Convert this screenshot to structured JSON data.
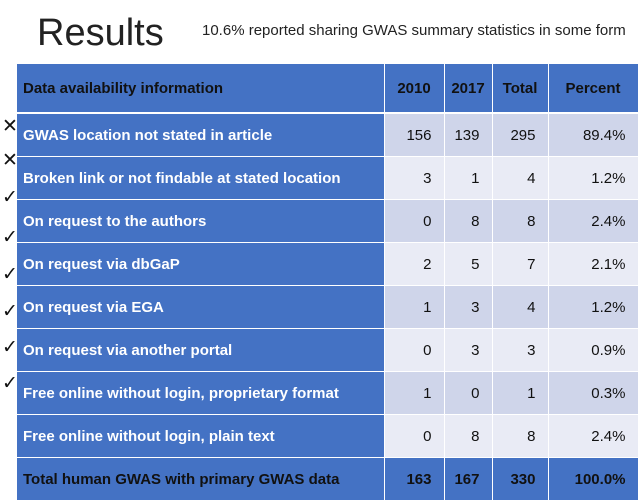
{
  "header": {
    "title": "Results",
    "subtitle": "10.6% reported sharing GWAS summary statistics in some form"
  },
  "table": {
    "columns": [
      "Data availability information",
      "2010",
      "2017",
      "Total",
      "Percent"
    ],
    "rows": [
      {
        "label": "GWAS location not stated in article",
        "y2010": "156",
        "y2017": "139",
        "total": "295",
        "percent": "89.4%",
        "mark": "✕"
      },
      {
        "label": "Broken link or not findable at stated location",
        "y2010": "3",
        "y2017": "1",
        "total": "4",
        "percent": "1.2%",
        "mark": "✕"
      },
      {
        "label": "On request to the authors",
        "y2010": "0",
        "y2017": "8",
        "total": "8",
        "percent": "2.4%",
        "mark": "✓"
      },
      {
        "label": "On request via dbGaP",
        "y2010": "2",
        "y2017": "5",
        "total": "7",
        "percent": "2.1%",
        "mark": "✓"
      },
      {
        "label": "On request via EGA",
        "y2010": "1",
        "y2017": "3",
        "total": "4",
        "percent": "1.2%",
        "mark": "✓"
      },
      {
        "label": "On request via another portal",
        "y2010": "0",
        "y2017": "3",
        "total": "3",
        "percent": "0.9%",
        "mark": "✓"
      },
      {
        "label": "Free online without login, proprietary format",
        "y2010": "1",
        "y2017": "0",
        "total": "1",
        "percent": "0.3%",
        "mark": "✓"
      },
      {
        "label": "Free online without login, plain text",
        "y2010": "0",
        "y2017": "8",
        "total": "8",
        "percent": "2.4%",
        "mark": ""
      }
    ],
    "total_row": {
      "label": "Total human GWAS with primary GWAS data",
      "y2010": "163",
      "y2017": "167",
      "total": "330",
      "percent": "100.0%"
    }
  },
  "colors": {
    "header_blue": "#4472c4",
    "row_dark": "#cfd5ea",
    "row_light": "#e9ebf5"
  }
}
